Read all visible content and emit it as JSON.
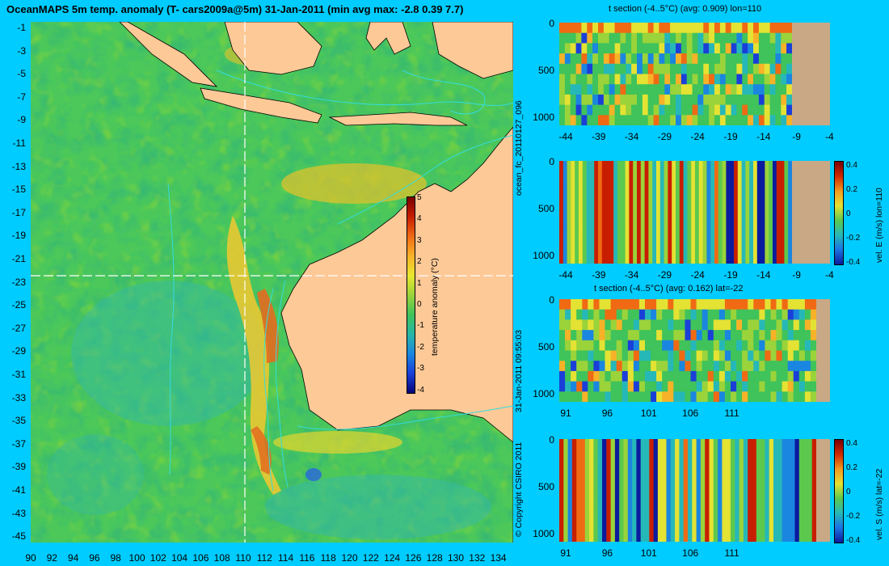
{
  "title": "OceanMAPS 5m temp. anomaly (T- cars2009a@5m) 31-Jan-2011 (min avg max: -2.8 0.39 7.7)",
  "map": {
    "lon_ticks": [
      "90",
      "92",
      "94",
      "96",
      "98",
      "100",
      "102",
      "104",
      "106",
      "108",
      "110",
      "112",
      "114",
      "116",
      "118",
      "120",
      "122",
      "124",
      "126",
      "128",
      "130",
      "132",
      "134"
    ],
    "lat_ticks": [
      "-1",
      "-3",
      "-5",
      "-7",
      "-9",
      "-11",
      "-13",
      "-15",
      "-17",
      "-19",
      "-21",
      "-23",
      "-25",
      "-27",
      "-29",
      "-31",
      "-33",
      "-35",
      "-37",
      "-39",
      "-41",
      "-43",
      "-45"
    ],
    "colorbar": {
      "label": "temperature anomaly (°C)",
      "ticks": [
        "5",
        "4",
        "3",
        "2",
        "1",
        "0",
        "-1",
        "-2",
        "-3",
        "-4"
      ]
    },
    "colors": {
      "land": "#fcc997",
      "background": "#00ccff",
      "contour": "#33dddd",
      "crosshair": "#ffffff"
    }
  },
  "side_labels": {
    "forecast_id": "ocean_fc_20110127_096",
    "timestamp": "31-Jan-2011 09:55:03",
    "copyright": "© Copyright CSIRO 2011"
  },
  "panels": [
    {
      "title": "t section (-4..5°C) (avg: 0.909) lon=110",
      "y_ticks": [
        "0",
        "500",
        "1000"
      ],
      "x_ticks": [
        "-44",
        "-39",
        "-34",
        "-29",
        "-24",
        "-19",
        "-14",
        "-9",
        "-4"
      ]
    },
    {
      "title": "",
      "y_ticks": [
        "0",
        "500",
        "1000"
      ],
      "x_ticks": [
        "-44",
        "-39",
        "-34",
        "-29",
        "-24",
        "-19",
        "-14",
        "-9",
        "-4"
      ],
      "colorbar": {
        "label": "vel. E (m/s) lon=110",
        "ticks": [
          "0.4",
          "0.2",
          "0",
          "-0.2",
          "-0.4"
        ]
      }
    },
    {
      "title": "t section (-4..5°C) (avg: 0.162) lat=-22",
      "y_ticks": [
        "0",
        "500",
        "1000"
      ],
      "x_ticks": [
        "91",
        "96",
        "101",
        "106",
        "111"
      ]
    },
    {
      "title": "",
      "y_ticks": [
        "0",
        "500",
        "1000"
      ],
      "x_ticks": [
        "91",
        "96",
        "101",
        "106",
        "111"
      ],
      "colorbar": {
        "label": "vel. S (m/s) lat=-22",
        "ticks": [
          "0.4",
          "0.2",
          "0",
          "-0.2",
          "-0.4"
        ]
      }
    }
  ]
}
